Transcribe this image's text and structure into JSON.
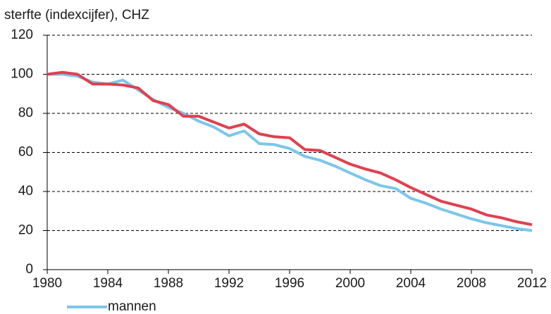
{
  "chart_data": {
    "type": "line",
    "title": "sterfte (indexcijfer), CHZ",
    "x": [
      1980,
      1981,
      1982,
      1983,
      1984,
      1985,
      1986,
      1987,
      1988,
      1989,
      1990,
      1991,
      1992,
      1993,
      1994,
      1995,
      1996,
      1997,
      1998,
      1999,
      2000,
      2001,
      2002,
      2003,
      2004,
      2005,
      2006,
      2007,
      2008,
      2009,
      2010,
      2011,
      2012
    ],
    "series": [
      {
        "name": "mannen",
        "color": "#7cc6ec",
        "values": [
          100,
          100,
          99,
          96,
          95,
          97,
          92,
          87,
          83,
          80,
          76,
          73,
          68.5,
          71,
          64.5,
          64,
          62,
          58,
          56,
          53,
          49.5,
          46,
          43,
          41.5,
          36.5,
          34,
          31,
          28.5,
          26,
          24,
          22.5,
          21,
          20
        ]
      },
      {
        "color": "#e0404f",
        "values": [
          100,
          101,
          100,
          95,
          95,
          94.5,
          93,
          86.5,
          84.5,
          78.5,
          78.5,
          75.5,
          72.5,
          74.5,
          69.5,
          68,
          67.5,
          61.5,
          61,
          57.5,
          54,
          51.5,
          49.5,
          46,
          42,
          38.5,
          35,
          33,
          31,
          28,
          26.5,
          24.5,
          23
        ]
      }
    ],
    "xlim": [
      1980,
      2012
    ],
    "xticks": [
      1980,
      1984,
      1988,
      1992,
      1996,
      2000,
      2004,
      2008,
      2012
    ],
    "ylim": [
      0,
      120
    ],
    "yticks": [
      0,
      20,
      40,
      60,
      80,
      100,
      120
    ],
    "grid": true
  }
}
